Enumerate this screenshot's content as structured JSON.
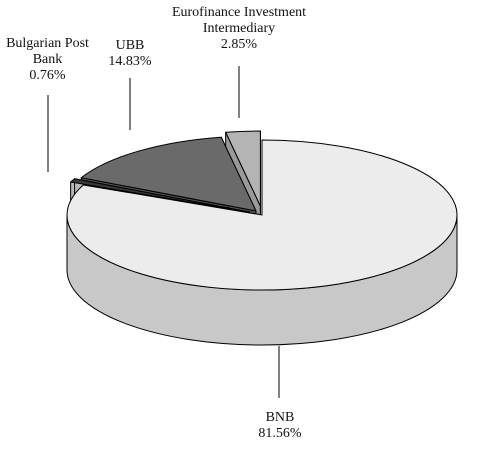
{
  "chart_data": {
    "type": "pie3d",
    "categories": [
      "BNB",
      "Bulgarian Post Bank",
      "UBB",
      "Eurofinance Investment Intermediary"
    ],
    "values": [
      81.56,
      0.76,
      14.83,
      2.85
    ],
    "value_labels": [
      "81.56%",
      "0.76%",
      "14.83%",
      "2.85%"
    ],
    "colors": [
      "#ececec",
      "#3a3a3a",
      "#6a6a6a",
      "#b4b4b4"
    ],
    "side_colors": [
      "#c8c8c8",
      "#b8b8b8",
      "#555555",
      "#9a9a9a"
    ]
  }
}
